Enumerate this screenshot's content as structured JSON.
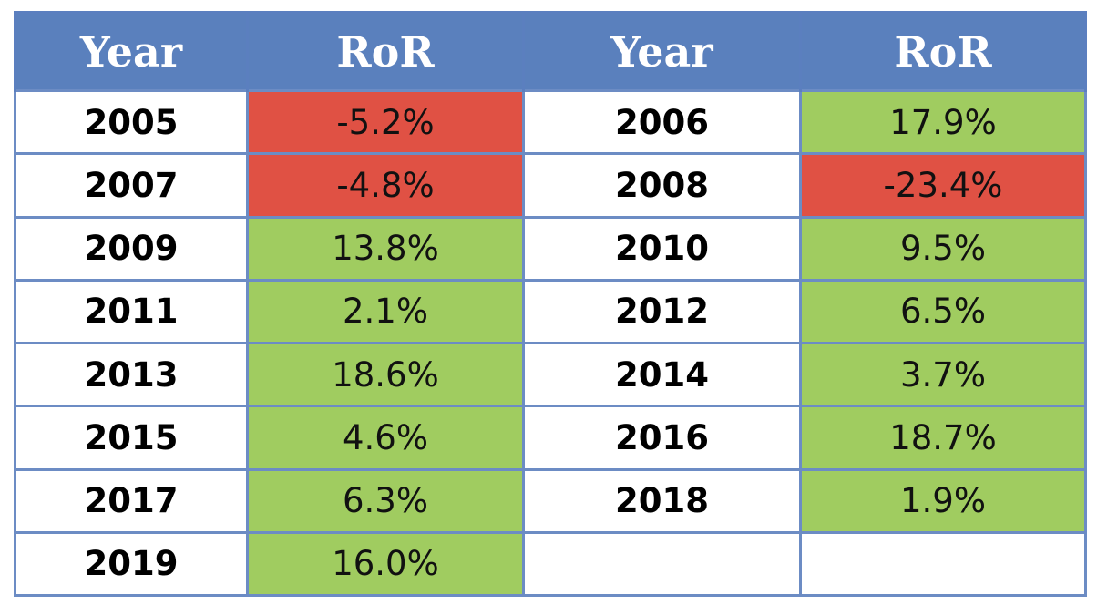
{
  "chart_data": {
    "type": "table",
    "columns": [
      "Year",
      "RoR",
      "Year",
      "RoR"
    ],
    "rows": [
      {
        "y1": "2005",
        "r1": "-5.2%",
        "y2": "2006",
        "r2": "17.9%"
      },
      {
        "y1": "2007",
        "r1": "-4.8%",
        "y2": "2008",
        "r2": "-23.4%"
      },
      {
        "y1": "2009",
        "r1": "13.8%",
        "y2": "2010",
        "r2": "9.5%"
      },
      {
        "y1": "2011",
        "r1": "2.1%",
        "y2": "2012",
        "r2": "6.5%"
      },
      {
        "y1": "2013",
        "r1": "18.6%",
        "y2": "2014",
        "r2": "3.7%"
      },
      {
        "y1": "2015",
        "r1": "4.6%",
        "y2": "2016",
        "r2": "18.7%"
      },
      {
        "y1": "2017",
        "r1": "6.3%",
        "y2": "2018",
        "r2": "1.9%"
      },
      {
        "y1": "2019",
        "r1": "16.0%",
        "y2": "",
        "r2": ""
      }
    ]
  },
  "colors": {
    "header_bg": "#5a80bd",
    "positive": "#a0cc60",
    "negative": "#e05144"
  }
}
